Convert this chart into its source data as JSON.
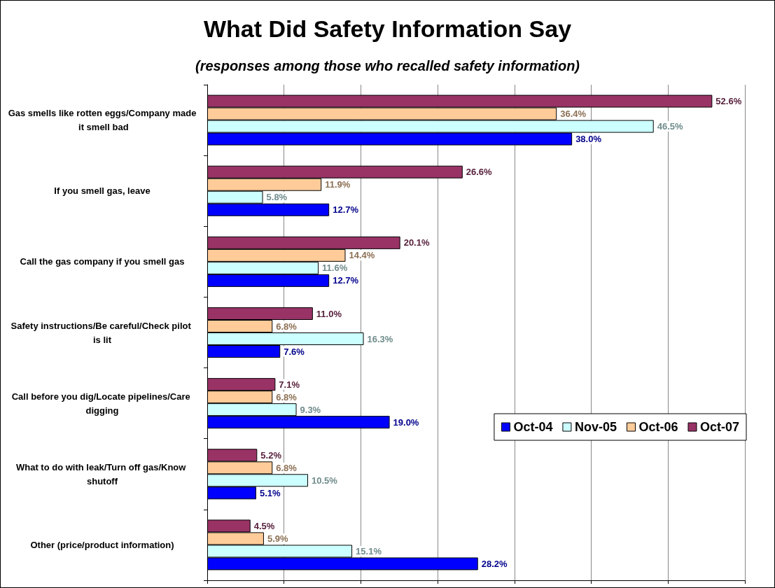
{
  "chart_data": {
    "type": "bar",
    "orientation": "horizontal",
    "title": "What Did Safety Information Say",
    "subtitle": "(responses among those who recalled safety information)",
    "categories": [
      "Gas smells like rotten eggs/Company made it smell bad",
      "If you smell gas, leave",
      "Call the gas company if you smell gas",
      "Safety instructions/Be careful/Check pilot is lit",
      "Call before you dig/Locate pipelines/Care digging",
      "What to do with leak/Turn off gas/Know shutoff",
      "Other (price/product information)"
    ],
    "series": [
      {
        "name": "Oct-04",
        "color": "#0000ff",
        "values": [
          38.0,
          12.7,
          12.7,
          7.6,
          19.0,
          5.1,
          28.2
        ],
        "value_labels": [
          "38.0%",
          "12.7%",
          "12.7%",
          "7.6%",
          "19.0%",
          "5.1%",
          "28.2%"
        ]
      },
      {
        "name": "Nov-05",
        "color": "#ccffff",
        "values": [
          46.5,
          5.8,
          11.6,
          16.3,
          9.3,
          10.5,
          15.1
        ],
        "value_labels": [
          "46.5%",
          "5.8%",
          "11.6%",
          "16.3%",
          "9.3%",
          "10.5%",
          "15.1%"
        ]
      },
      {
        "name": "Oct-06",
        "color": "#ffcc99",
        "values": [
          36.4,
          11.9,
          14.4,
          6.8,
          6.8,
          6.8,
          5.9
        ],
        "value_labels": [
          "36.4%",
          "11.9%",
          "14.4%",
          "6.8%",
          "6.8%",
          "6.8%",
          "5.9%"
        ]
      },
      {
        "name": "Oct-07",
        "color": "#993366",
        "values": [
          52.6,
          26.6,
          20.1,
          11.0,
          7.1,
          5.2,
          4.5
        ],
        "value_labels": [
          "52.6%",
          "26.6%",
          "20.1%",
          "11.0%",
          "7.1%",
          "5.2%",
          "4.5%"
        ]
      }
    ],
    "xlim": [
      0,
      56
    ],
    "xticks": [
      {
        "value": 0,
        "label": null
      },
      {
        "value": 8,
        "label": null
      },
      {
        "value": 16,
        "label": null
      },
      {
        "value": 24,
        "label": null
      },
      {
        "value": 32,
        "label": null
      },
      {
        "value": 40,
        "label": null
      },
      {
        "value": 48,
        "label": null
      },
      {
        "value": 56,
        "label": null
      }
    ],
    "tick_labels": "y",
    "grid": "x",
    "legend": "right"
  }
}
